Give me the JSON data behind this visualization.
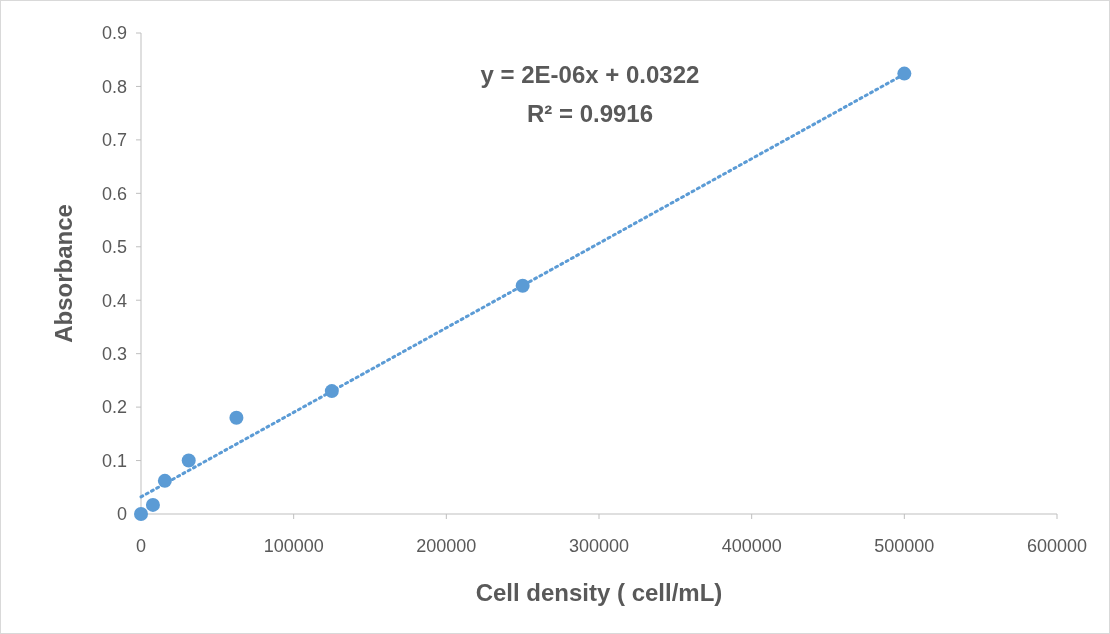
{
  "chart_data": {
    "type": "scatter",
    "xlabel": "Cell density ( cell/mL)",
    "ylabel": "Absorbance",
    "xlim": [
      0,
      600000
    ],
    "xticks": [
      0,
      100000,
      200000,
      300000,
      400000,
      500000,
      600000
    ],
    "ylim": [
      0,
      0.9
    ],
    "yticks": [
      0,
      0.1,
      0.2,
      0.3,
      0.4,
      0.5,
      0.6,
      0.7,
      0.8,
      0.9
    ],
    "grid": false,
    "marker": "circle",
    "series": [
      {
        "color": "#5b9bd5",
        "x": [
          0,
          7812.5,
          15625,
          31250,
          62500,
          125000,
          250000,
          500000
        ],
        "values": [
          0,
          0.017,
          0.062,
          0.1,
          0.18,
          0.23,
          0.427,
          0.824
        ]
      },
      {
        "type": "line",
        "color": "#5b9bd5",
        "line_style": "dotted",
        "marker": "none",
        "x": [
          0,
          500000
        ],
        "values": [
          0.032,
          0.823
        ]
      }
    ],
    "annotations": [
      "y = 2E-06x + 0.0322",
      "R² = 0.9916"
    ]
  }
}
